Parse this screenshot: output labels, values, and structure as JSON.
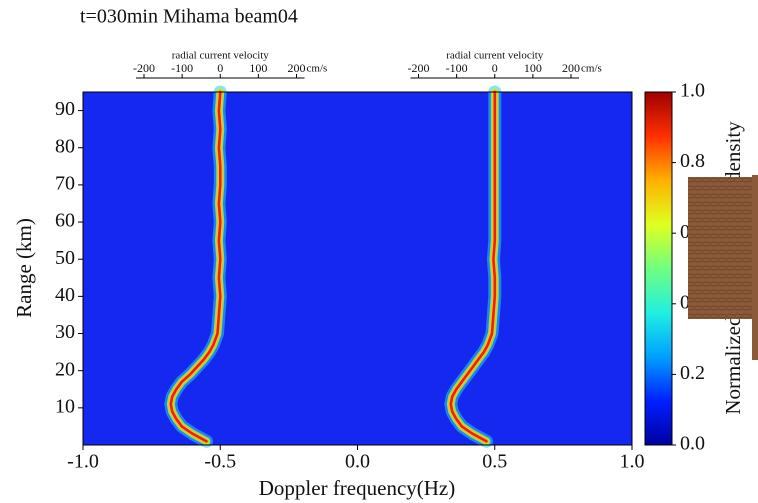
{
  "chart_data": {
    "type": "ridge",
    "title": "t=030min Mihama beam04",
    "xlabel": "Doppler frequency(Hz)",
    "ylabel": "Range (km)",
    "xlim": [
      -1.0,
      1.0
    ],
    "xticks": [
      {
        "value": -1.0,
        "label": "-1.0"
      },
      -0.5,
      {
        "value": 0.0,
        "label": "0.0"
      },
      0.5,
      {
        "value": 1.0,
        "label": "1.0"
      }
    ],
    "ylim": [
      0,
      95
    ],
    "yticks": [
      10,
      20,
      30,
      40,
      50,
      60,
      70,
      80,
      90
    ],
    "background_color": "#1428f0",
    "y": [
      1,
      3,
      5,
      7,
      9,
      11,
      13,
      15,
      17,
      19,
      21,
      23,
      25,
      27,
      30,
      35,
      40,
      45,
      50,
      55,
      60,
      65,
      70,
      75,
      80,
      85,
      90,
      95
    ],
    "series": [
      {
        "color": "#e8201a",
        "values": [
          -0.55,
          -0.6,
          -0.64,
          -0.66,
          -0.675,
          -0.68,
          -0.675,
          -0.66,
          -0.64,
          -0.61,
          -0.585,
          -0.56,
          -0.54,
          -0.525,
          -0.51,
          -0.505,
          -0.5,
          -0.505,
          -0.5,
          -0.505,
          -0.5,
          -0.505,
          -0.5,
          -0.5,
          -0.505,
          -0.5,
          -0.505,
          -0.5
        ]
      },
      {
        "color": "#e8201a",
        "values": [
          0.47,
          0.42,
          0.38,
          0.36,
          0.345,
          0.34,
          0.345,
          0.36,
          0.38,
          0.4,
          0.42,
          0.44,
          0.46,
          0.475,
          0.49,
          0.495,
          0.5,
          0.5,
          0.495,
          0.5,
          0.5,
          0.5,
          0.5,
          0.5,
          0.5,
          0.5,
          0.5,
          0.5
        ]
      }
    ],
    "top_axes": [
      {
        "label": "radial current velocity",
        "unit": "cm/s",
        "xlim": [
          -360,
          360
        ],
        "xticks": [
          -200,
          -100,
          0,
          100,
          200
        ]
      },
      {
        "label": "radial current velocity",
        "unit": "cm/s",
        "xlim": [
          -360,
          360
        ],
        "xticks": [
          -200,
          -100,
          0,
          100,
          200
        ]
      }
    ],
    "colorbar": {
      "label": "Normalized power spectral density",
      "clim": [
        0,
        1
      ],
      "colors": [
        "#0000a0",
        "#0020ff",
        "#00a0ff",
        "#20f0e0",
        "#70ff80",
        "#e0ff20",
        "#ffb000",
        "#ff3000",
        "#a00000"
      ],
      "ticks": [
        {
          "value": 0.0,
          "label": "0.0"
        },
        0.2,
        0.4,
        0.6,
        0.8,
        {
          "value": 1.0,
          "label": "1.0"
        }
      ]
    }
  }
}
